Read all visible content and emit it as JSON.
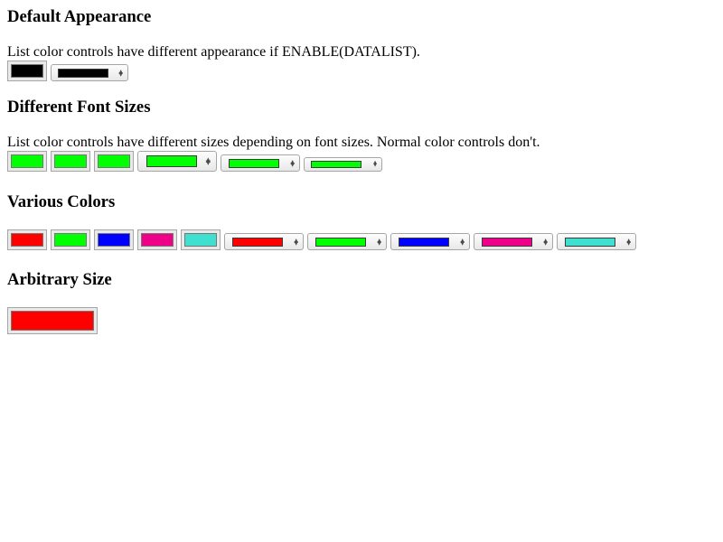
{
  "sections": {
    "default": {
      "heading": "Default Appearance",
      "description": "List color controls have different appearance if ENABLE(DATALIST).",
      "well_color": "#000000",
      "list_color": "#000000"
    },
    "font_sizes": {
      "heading": "Different Font Sizes",
      "description": "List color controls have different sizes depending on font sizes. Normal color controls don't.",
      "color": "#00ff00"
    },
    "various": {
      "heading": "Various Colors",
      "colors": [
        "#ff0000",
        "#00ff00",
        "#0000ff",
        "#ee0088",
        "#40e0d0"
      ]
    },
    "arbitrary": {
      "heading": "Arbitrary Size",
      "color": "#ff0000"
    }
  },
  "icons": {
    "list_arrows": "updown-arrows-icon"
  }
}
